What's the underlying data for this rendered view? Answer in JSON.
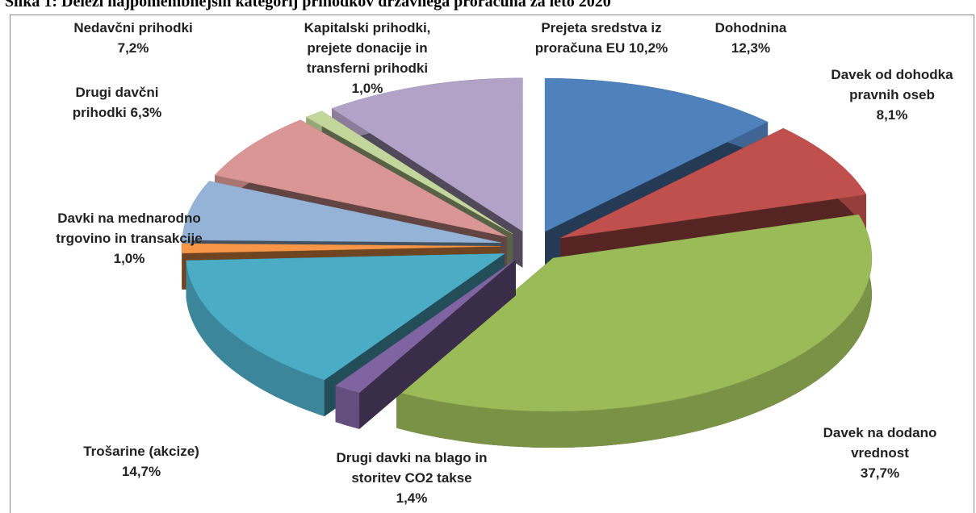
{
  "chart_data": {
    "type": "pie3d",
    "title": "Slika 1: Deleži najpomembnejših kategorij prihodkov državnega proračuna za leto 2020",
    "categories": [
      "Dohodnina",
      "Davek od dohodka pravnih oseb",
      "Davek na dodano vrednost",
      "Drugi davki na blago in storitev CO2 takse",
      "Trošarine (akcize)",
      "Davki na mednarodno trgovino in transakcije",
      "Drugi davčni prihodki",
      "Nedavčni prihodki",
      "Kapitalski prihodki, prejete donacije in transferni prihodki",
      "Prejeta sredstva iz proračuna EU"
    ],
    "values": [
      12.3,
      8.1,
      37.7,
      1.4,
      14.7,
      1.0,
      6.3,
      7.2,
      1.0,
      10.2
    ],
    "value_labels": [
      "12,3%",
      "8,1%",
      "37,7%",
      "1,4%",
      "14,7%",
      "1,0%",
      "6,3%",
      "7,2%",
      "1,0%",
      "10,2%"
    ],
    "colors": [
      "#4f81bd",
      "#c0504d",
      "#9bbb59",
      "#8064a2",
      "#4bacc6",
      "#f79646",
      "#95b3d7",
      "#d99694",
      "#c3d69b",
      "#b3a2c7"
    ]
  }
}
